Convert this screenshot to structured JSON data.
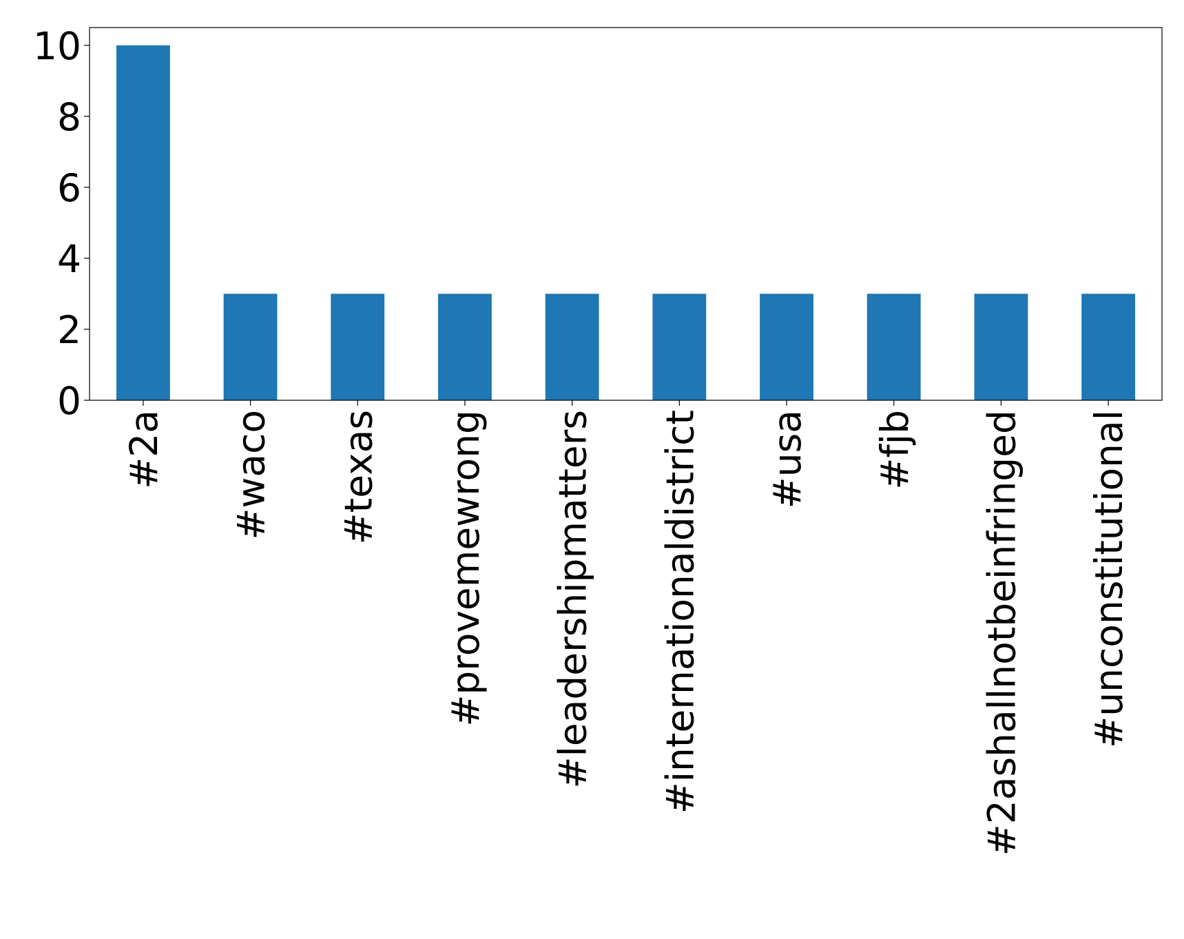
{
  "chart_data": {
    "type": "bar",
    "categories": [
      "#2a",
      "#waco",
      "#texas",
      "#provemewrong",
      "#leadershipmatters",
      "#internationaldistrict",
      "#usa",
      "#fjb",
      "#2ashallnotbeinfringed",
      "#unconstitutional"
    ],
    "values": [
      10,
      3,
      3,
      3,
      3,
      3,
      3,
      3,
      3,
      3
    ],
    "color": "#1f77b4",
    "ylim": [
      0,
      10.5
    ],
    "yticks": [
      0,
      2,
      4,
      6,
      8,
      10
    ],
    "grid": false
  }
}
